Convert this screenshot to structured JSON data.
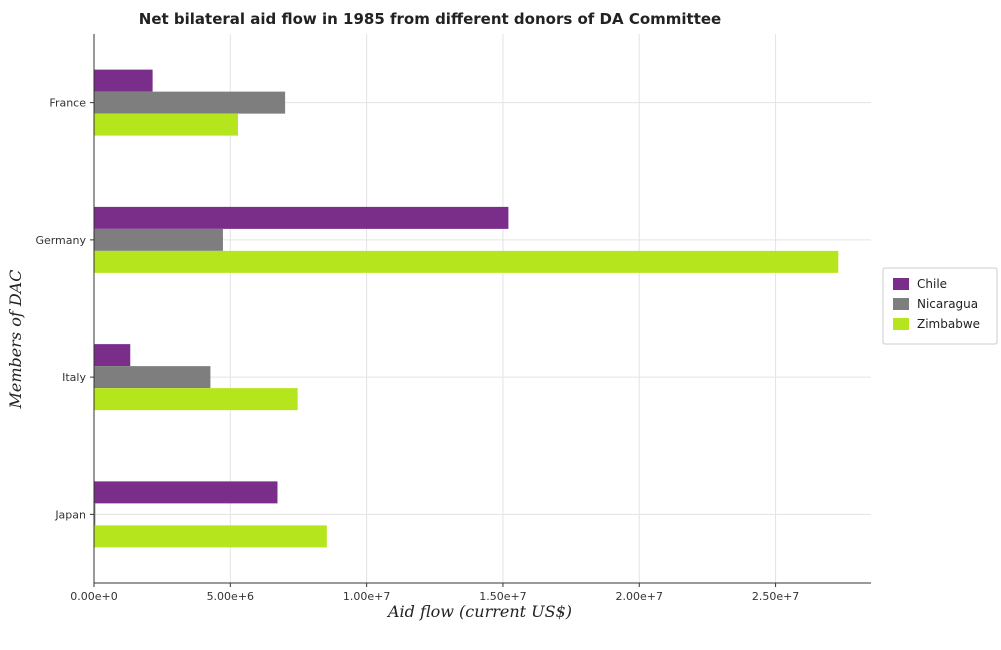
{
  "chart_data": {
    "type": "bar",
    "orientation": "horizontal",
    "title": "Net bilateral aid flow in 1985 from different donors of DA Committee",
    "xlabel": "Aid flow (current US$)",
    "ylabel": "Members of DAC",
    "categories": [
      "France",
      "Germany",
      "Italy",
      "Japan"
    ],
    "series": [
      {
        "name": "Chile",
        "color": "#7b2d8a",
        "values": [
          2150000,
          15200000,
          1330000,
          6730000
        ]
      },
      {
        "name": "Nicaragua",
        "color": "#7e7e7e",
        "values": [
          7010000,
          4730000,
          4270000,
          50000
        ]
      },
      {
        "name": "Zimbabwe",
        "color": "#b5e61d",
        "values": [
          5280000,
          27300000,
          7470000,
          8540000
        ]
      }
    ],
    "xlim": [
      0,
      28500000
    ],
    "xticks": [
      0,
      5000000,
      10000000,
      15000000,
      20000000,
      25000000
    ],
    "xtick_labels": [
      "0.00e+0",
      "5.00e+6",
      "1.00e+7",
      "1.50e+7",
      "2.00e+7",
      "2.50e+7"
    ],
    "grid": true,
    "legend_position": "right"
  }
}
